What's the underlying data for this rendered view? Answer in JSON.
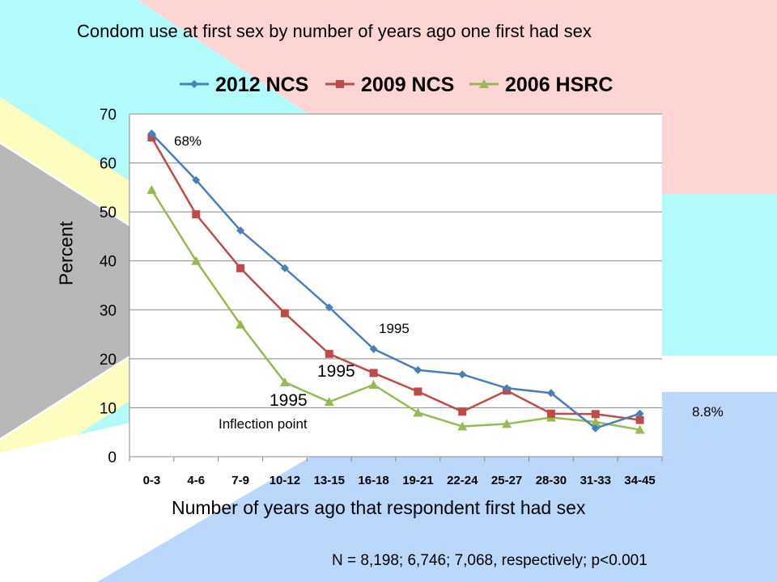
{
  "chart_data": {
    "type": "line",
    "title": "Condom use at first sex by number of years ago one first had sex",
    "xlabel": "Number of years ago that respondent first had sex",
    "ylabel": "Percent",
    "ylim": [
      0,
      70
    ],
    "yticks": [
      0,
      10,
      20,
      30,
      40,
      50,
      60,
      70
    ],
    "grid": true,
    "legend_position": "top",
    "categories": [
      "0-3",
      "4-6",
      "7-9",
      "10-12",
      "13-15",
      "16-18",
      "19-21",
      "22-24",
      "25-27",
      "28-30",
      "31-33",
      "34-45"
    ],
    "series": [
      {
        "name": "2012 NCS",
        "color": "#4a7ebb",
        "marker": "diamond",
        "values": [
          66,
          56.5,
          46.2,
          38.5,
          30.5,
          22,
          17.7,
          16.8,
          14,
          13,
          5.8,
          8.8
        ]
      },
      {
        "name": "2009 NCS",
        "color": "#be4b48",
        "marker": "square",
        "values": [
          65.2,
          49.5,
          38.5,
          29.3,
          21,
          17.1,
          13.3,
          9.2,
          13.5,
          8.8,
          8.7,
          7.5
        ]
      },
      {
        "name": "2006 HSRC",
        "color": "#98b954",
        "marker": "triangle",
        "values": [
          54.5,
          40,
          27,
          15.2,
          11.2,
          14.7,
          9,
          6.2,
          6.7,
          8,
          7.1,
          5.5
        ]
      }
    ],
    "annotations": {
      "pct_68": "68%",
      "pct_88": "8.8%",
      "year_a": "1995",
      "year_b": "1995",
      "year_c": "1995",
      "inflection": "Inflection point"
    },
    "note": "N = 8,198; 6,746; 7,068, respectively; p<0.001"
  },
  "background": {
    "pink": "#fdd5d5",
    "cyan": "#b3fbfb",
    "yellow": "#fdfdc0",
    "gray": "#b8b8b8",
    "blue": "#b9d8fb"
  }
}
